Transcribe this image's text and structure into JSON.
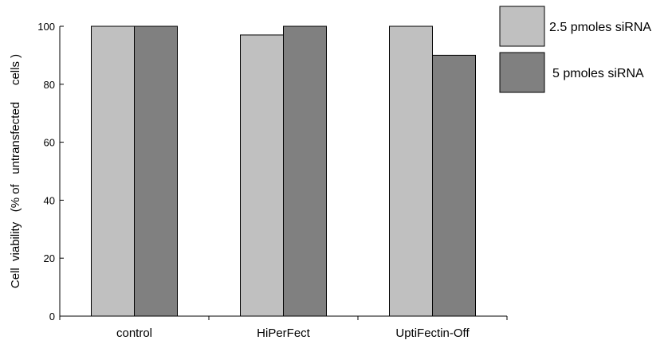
{
  "chart_data": {
    "type": "bar",
    "title": "",
    "xlabel": "",
    "ylabel": "Cell  viability   (% of   untransfected     cells )",
    "ylim": [
      0,
      100
    ],
    "yticks": [
      0,
      20,
      40,
      60,
      80,
      100
    ],
    "categories": [
      "control",
      "HiPerFect",
      "UptiFectin-Off"
    ],
    "series": [
      {
        "name": "2.5 pmoles siRNA",
        "color": "#c0c0c0",
        "values": [
          100,
          97,
          100
        ]
      },
      {
        "name": "5 pmoles siRNA",
        "color": "#808080",
        "values": [
          100,
          100,
          90
        ]
      }
    ],
    "legend_position": "top-right",
    "grid": false
  }
}
